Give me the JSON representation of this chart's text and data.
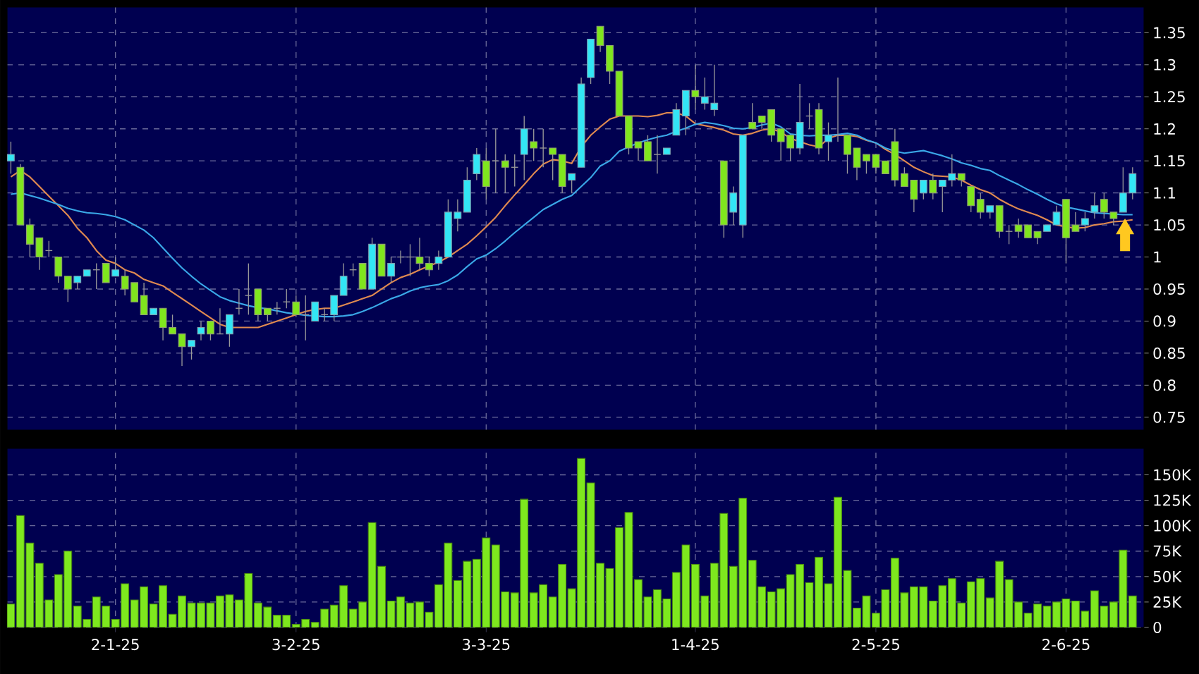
{
  "chart_data": [
    {
      "type": "candlestick",
      "categories": [
        null,
        null,
        null,
        null,
        null,
        null,
        null,
        null,
        null,
        null,
        null,
        null,
        null,
        null,
        null,
        null,
        null,
        null,
        null,
        null,
        null,
        null,
        null,
        null,
        null,
        null,
        null,
        null,
        null,
        null,
        null,
        null,
        null,
        null,
        null,
        null,
        null,
        null,
        null,
        null,
        null,
        null,
        null,
        null,
        null,
        null,
        null,
        null,
        null,
        null,
        null,
        null,
        null,
        null,
        null,
        null,
        null,
        null,
        null,
        null,
        null,
        null,
        null,
        null,
        null,
        null,
        null,
        null,
        null,
        null,
        null,
        null,
        null,
        null,
        null,
        null,
        null,
        null,
        null,
        null,
        null,
        null,
        null,
        null,
        null,
        null,
        null,
        null,
        null,
        null,
        null,
        null,
        null,
        null,
        null,
        null,
        null,
        null,
        null,
        null,
        null,
        null,
        null,
        null,
        null,
        null,
        null,
        null,
        null,
        null,
        null,
        null,
        null,
        null,
        null,
        null,
        null,
        null,
        null
      ],
      "ohlc": [
        [
          1.15,
          1.18,
          1.13,
          1.16
        ],
        [
          1.14,
          1.145,
          1.05,
          1.05
        ],
        [
          1.05,
          1.06,
          1.0,
          1.02
        ],
        [
          1.03,
          1.03,
          0.98,
          1.0
        ],
        [
          1.01,
          1.025,
          1.0,
          1.01
        ],
        [
          1.0,
          1.0,
          0.96,
          0.97
        ],
        [
          0.97,
          0.97,
          0.93,
          0.95
        ],
        [
          0.96,
          0.97,
          0.95,
          0.97
        ],
        [
          0.97,
          0.98,
          0.97,
          0.98
        ],
        [
          0.98,
          0.99,
          0.95,
          0.98
        ],
        [
          0.99,
          0.99,
          0.96,
          0.96
        ],
        [
          0.97,
          1.0,
          0.97,
          0.98
        ],
        [
          0.97,
          0.98,
          0.94,
          0.95
        ],
        [
          0.96,
          0.96,
          0.93,
          0.93
        ],
        [
          0.94,
          0.96,
          0.91,
          0.91
        ],
        [
          0.91,
          0.92,
          0.91,
          0.92
        ],
        [
          0.92,
          0.92,
          0.87,
          0.89
        ],
        [
          0.89,
          0.91,
          0.88,
          0.88
        ],
        [
          0.88,
          0.88,
          0.83,
          0.86
        ],
        [
          0.86,
          0.87,
          0.84,
          0.87
        ],
        [
          0.88,
          0.9,
          0.87,
          0.89
        ],
        [
          0.9,
          0.9,
          0.87,
          0.88
        ],
        [
          0.88,
          0.92,
          0.88,
          0.88
        ],
        [
          0.88,
          0.91,
          0.86,
          0.91
        ],
        [
          0.92,
          0.95,
          0.91,
          0.92
        ],
        [
          0.94,
          0.99,
          0.91,
          0.94
        ],
        [
          0.95,
          0.95,
          0.9,
          0.91
        ],
        [
          0.92,
          0.92,
          0.9,
          0.91
        ],
        [
          0.92,
          0.93,
          0.91,
          0.92
        ],
        [
          0.93,
          0.95,
          0.92,
          0.93
        ],
        [
          0.93,
          0.94,
          0.91,
          0.91
        ],
        [
          0.91,
          0.94,
          0.87,
          0.91
        ],
        [
          0.9,
          0.93,
          0.9,
          0.93
        ],
        [
          0.91,
          0.92,
          0.9,
          0.91
        ],
        [
          0.91,
          0.94,
          0.9,
          0.94
        ],
        [
          0.94,
          0.99,
          0.94,
          0.97
        ],
        [
          0.98,
          0.99,
          0.97,
          0.98
        ],
        [
          0.99,
          0.99,
          0.95,
          0.95
        ],
        [
          0.95,
          1.03,
          0.95,
          1.02
        ],
        [
          1.02,
          1.02,
          0.97,
          0.97
        ],
        [
          0.97,
          1.0,
          0.96,
          0.99
        ],
        [
          1.0,
          1.01,
          0.99,
          1.0
        ],
        [
          1.0,
          1.02,
          0.97,
          1.0
        ],
        [
          1.0,
          1.03,
          0.98,
          0.99
        ],
        [
          0.99,
          1.0,
          0.97,
          0.98
        ],
        [
          0.99,
          1.01,
          0.98,
          1.0
        ],
        [
          1.0,
          1.09,
          1.0,
          1.07
        ],
        [
          1.06,
          1.09,
          1.04,
          1.07
        ],
        [
          1.07,
          1.14,
          1.07,
          1.12
        ],
        [
          1.13,
          1.17,
          1.12,
          1.16
        ],
        [
          1.15,
          1.17,
          1.09,
          1.11
        ],
        [
          1.15,
          1.2,
          1.1,
          1.15
        ],
        [
          1.15,
          1.16,
          1.1,
          1.14
        ],
        [
          1.14,
          1.16,
          1.11,
          1.14
        ],
        [
          1.16,
          1.22,
          1.12,
          1.2
        ],
        [
          1.18,
          1.2,
          1.15,
          1.17
        ],
        [
          1.17,
          1.2,
          1.14,
          1.17
        ],
        [
          1.17,
          1.17,
          1.12,
          1.16
        ],
        [
          1.16,
          1.16,
          1.1,
          1.11
        ],
        [
          1.12,
          1.13,
          1.1,
          1.13
        ],
        [
          1.14,
          1.28,
          1.14,
          1.27
        ],
        [
          1.28,
          1.34,
          1.27,
          1.34
        ],
        [
          1.36,
          1.36,
          1.32,
          1.33
        ],
        [
          1.33,
          1.33,
          1.27,
          1.29
        ],
        [
          1.29,
          1.29,
          1.22,
          1.22
        ],
        [
          1.22,
          1.22,
          1.16,
          1.17
        ],
        [
          1.18,
          1.18,
          1.15,
          1.17
        ],
        [
          1.18,
          1.19,
          1.15,
          1.15
        ],
        [
          1.16,
          1.19,
          1.13,
          1.16
        ],
        [
          1.16,
          1.17,
          1.16,
          1.17
        ],
        [
          1.19,
          1.24,
          1.19,
          1.23
        ],
        [
          1.22,
          1.26,
          1.19,
          1.26
        ],
        [
          1.26,
          1.3,
          1.23,
          1.25
        ],
        [
          1.24,
          1.28,
          1.23,
          1.25
        ],
        [
          1.23,
          1.3,
          1.22,
          1.24
        ],
        [
          1.15,
          1.15,
          1.03,
          1.05
        ],
        [
          1.07,
          1.11,
          1.05,
          1.1
        ],
        [
          1.05,
          1.19,
          1.03,
          1.19
        ],
        [
          1.21,
          1.24,
          1.2,
          1.2
        ],
        [
          1.22,
          1.22,
          1.2,
          1.21
        ],
        [
          1.23,
          1.23,
          1.18,
          1.19
        ],
        [
          1.2,
          1.2,
          1.15,
          1.18
        ],
        [
          1.19,
          1.19,
          1.15,
          1.17
        ],
        [
          1.17,
          1.27,
          1.16,
          1.21
        ],
        [
          1.22,
          1.24,
          1.2,
          1.22
        ],
        [
          1.23,
          1.24,
          1.16,
          1.17
        ],
        [
          1.18,
          1.21,
          1.15,
          1.19
        ],
        [
          1.19,
          1.28,
          1.18,
          1.19
        ],
        [
          1.19,
          1.19,
          1.13,
          1.16
        ],
        [
          1.17,
          1.17,
          1.12,
          1.14
        ],
        [
          1.16,
          1.16,
          1.13,
          1.15
        ],
        [
          1.16,
          1.16,
          1.13,
          1.14
        ],
        [
          1.15,
          1.15,
          1.13,
          1.13
        ],
        [
          1.18,
          1.2,
          1.11,
          1.12
        ],
        [
          1.13,
          1.14,
          1.11,
          1.11
        ],
        [
          1.12,
          1.12,
          1.07,
          1.09
        ],
        [
          1.1,
          1.12,
          1.09,
          1.12
        ],
        [
          1.12,
          1.13,
          1.09,
          1.1
        ],
        [
          1.11,
          1.12,
          1.07,
          1.12
        ],
        [
          1.12,
          1.16,
          1.11,
          1.13
        ],
        [
          1.13,
          1.13,
          1.11,
          1.12
        ],
        [
          1.11,
          1.11,
          1.07,
          1.08
        ],
        [
          1.09,
          1.1,
          1.06,
          1.07
        ],
        [
          1.07,
          1.08,
          1.06,
          1.08
        ],
        [
          1.08,
          1.08,
          1.03,
          1.04
        ],
        [
          1.04,
          1.05,
          1.02,
          1.04
        ],
        [
          1.05,
          1.06,
          1.03,
          1.04
        ],
        [
          1.05,
          1.05,
          1.03,
          1.03
        ],
        [
          1.04,
          1.04,
          1.02,
          1.03
        ],
        [
          1.04,
          1.05,
          1.04,
          1.05
        ],
        [
          1.05,
          1.08,
          1.05,
          1.07
        ],
        [
          1.09,
          1.09,
          0.99,
          1.03
        ],
        [
          1.05,
          1.07,
          1.04,
          1.04
        ],
        [
          1.05,
          1.07,
          1.04,
          1.06
        ],
        [
          1.07,
          1.1,
          1.06,
          1.08
        ],
        [
          1.09,
          1.1,
          1.06,
          1.07
        ],
        [
          1.07,
          1.07,
          1.05,
          1.06
        ],
        [
          1.07,
          1.14,
          1.07,
          1.1
        ],
        [
          1.1,
          1.14,
          1.09,
          1.13
        ]
      ],
      "series": [
        {
          "type": "line",
          "color": "#e08a50",
          "values": [
            1.125,
            1.135,
            1.125,
            1.11,
            1.095,
            1.08,
            1.065,
            1.045,
            1.03,
            1.01,
            0.995,
            0.99,
            0.98,
            0.975,
            0.965,
            0.96,
            0.955,
            0.945,
            0.935,
            0.925,
            0.915,
            0.905,
            0.895,
            0.89,
            0.89,
            0.89,
            0.89,
            0.895,
            0.9,
            0.905,
            0.91,
            0.915,
            0.918,
            0.92,
            0.92,
            0.925,
            0.93,
            0.935,
            0.94,
            0.95,
            0.96,
            0.968,
            0.973,
            0.98,
            0.986,
            0.992,
            1.0,
            1.01,
            1.02,
            1.033,
            1.047,
            1.062,
            1.08,
            1.097,
            1.113,
            1.13,
            1.145,
            1.152,
            1.15,
            1.146,
            1.172,
            1.19,
            1.203,
            1.215,
            1.22,
            1.22,
            1.22,
            1.219,
            1.221,
            1.225,
            1.225,
            1.22,
            1.208,
            1.205,
            1.202,
            1.198,
            1.192,
            1.19,
            1.193,
            1.198,
            1.2,
            1.195,
            1.185,
            1.18,
            1.175,
            1.172,
            1.185,
            1.19,
            1.19,
            1.188,
            1.182,
            1.178,
            1.168,
            1.16,
            1.15,
            1.14,
            1.133,
            1.127,
            1.126,
            1.125,
            1.12,
            1.112,
            1.105,
            1.1,
            1.09,
            1.082,
            1.075,
            1.07,
            1.065,
            1.058,
            1.05,
            1.047,
            1.045,
            1.046,
            1.05,
            1.052,
            1.055,
            1.056,
            1.058
          ]
        },
        {
          "type": "line",
          "color": "#3aa8e8",
          "values": [
            1.098,
            1.1,
            1.096,
            1.092,
            1.087,
            1.082,
            1.076,
            1.072,
            1.069,
            1.068,
            1.066,
            1.063,
            1.058,
            1.05,
            1.042,
            1.03,
            1.014,
            0.998,
            0.983,
            0.97,
            0.958,
            0.948,
            0.938,
            0.932,
            0.928,
            0.924,
            0.921,
            0.919,
            0.916,
            0.913,
            0.911,
            0.909,
            0.908,
            0.907,
            0.907,
            0.908,
            0.91,
            0.915,
            0.921,
            0.928,
            0.935,
            0.94,
            0.947,
            0.952,
            0.955,
            0.957,
            0.963,
            0.972,
            0.985,
            0.997,
            1.003,
            1.013,
            1.025,
            1.038,
            1.05,
            1.062,
            1.074,
            1.082,
            1.09,
            1.096,
            1.11,
            1.124,
            1.142,
            1.15,
            1.165,
            1.172,
            1.178,
            1.183,
            1.187,
            1.19,
            1.196,
            1.201,
            1.207,
            1.21,
            1.208,
            1.205,
            1.201,
            1.2,
            1.202,
            1.206,
            1.209,
            1.203,
            1.192,
            1.19,
            1.189,
            1.19,
            1.19,
            1.191,
            1.193,
            1.19,
            1.183,
            1.178,
            1.17,
            1.165,
            1.162,
            1.164,
            1.166,
            1.162,
            1.158,
            1.153,
            1.147,
            1.143,
            1.138,
            1.135,
            1.127,
            1.12,
            1.113,
            1.105,
            1.098,
            1.09,
            1.083,
            1.078,
            1.075,
            1.072,
            1.069,
            1.068,
            1.067,
            1.066,
            1.066
          ]
        }
      ],
      "ylim": [
        0.73,
        1.39
      ],
      "yticks": [
        0.75,
        0.8,
        0.85,
        0.9,
        0.95,
        1,
        1.05,
        1.1,
        1.15,
        1.2,
        1.25,
        1.3,
        1.35
      ],
      "grid": true,
      "tick_labels": "y"
    },
    {
      "type": "bar",
      "categories": [
        null,
        null,
        null,
        null,
        null,
        null,
        null,
        null,
        null,
        null,
        null,
        "2-1-25",
        null,
        null,
        null,
        null,
        null,
        null,
        null,
        null,
        null,
        null,
        null,
        null,
        null,
        null,
        null,
        null,
        null,
        null,
        "3-2-25",
        null,
        null,
        null,
        null,
        null,
        null,
        null,
        null,
        null,
        null,
        null,
        null,
        null,
        null,
        null,
        null,
        null,
        null,
        null,
        "3-3-25",
        null,
        null,
        null,
        null,
        null,
        null,
        null,
        null,
        null,
        null,
        null,
        null,
        null,
        null,
        null,
        null,
        null,
        null,
        null,
        null,
        null,
        "1-4-25",
        null,
        null,
        null,
        null,
        null,
        null,
        null,
        null,
        null,
        null,
        null,
        null,
        null,
        null,
        null,
        null,
        null,
        null,
        "2-5-25",
        null,
        null,
        null,
        null,
        null,
        null,
        null,
        null,
        null,
        null,
        null,
        null,
        null,
        null,
        null,
        null,
        null,
        null,
        null,
        "2-6-25",
        null,
        null,
        null,
        null,
        null,
        null,
        null
      ],
      "values": [
        23000,
        110000,
        83000,
        63000,
        27000,
        52000,
        75000,
        21000,
        8000,
        30000,
        21000,
        8000,
        43000,
        27000,
        40000,
        23000,
        41000,
        13000,
        31000,
        24000,
        24000,
        24000,
        31000,
        32000,
        27000,
        53000,
        24000,
        20000,
        12000,
        12000,
        3000,
        8000,
        5000,
        18000,
        22000,
        41000,
        18000,
        25000,
        103000,
        60000,
        26000,
        30000,
        24000,
        25000,
        15000,
        42000,
        83000,
        46000,
        65000,
        67000,
        88000,
        81000,
        35000,
        34000,
        126000,
        34000,
        42000,
        30000,
        62000,
        38000,
        166000,
        142000,
        63000,
        58000,
        98000,
        113000,
        47000,
        30000,
        37000,
        28000,
        54000,
        81000,
        62000,
        31000,
        63000,
        112000,
        60000,
        127000,
        66000,
        40000,
        35000,
        38000,
        52000,
        62000,
        44000,
        69000,
        43000,
        128000,
        56000,
        19000,
        31000,
        14000,
        37000,
        68000,
        34000,
        40000,
        40000,
        26000,
        41000,
        48000,
        24000,
        45000,
        48000,
        29000,
        65000,
        47000,
        25000,
        14000,
        23000,
        21000,
        25000,
        28000,
        26000,
        16000,
        36000,
        21000,
        25000,
        76000,
        31000
      ],
      "color": "#7ee81e",
      "ylim": [
        0,
        176000
      ],
      "yticks": [
        0,
        {
          "value": 25000,
          "label": "25K"
        },
        {
          "value": 50000,
          "label": "50K"
        },
        {
          "value": 75000,
          "label": "75K"
        },
        {
          "value": 100000,
          "label": "100K"
        },
        {
          "value": 125000,
          "label": "125K"
        },
        {
          "value": 150000,
          "label": "150K"
        }
      ],
      "grid": true
    }
  ]
}
